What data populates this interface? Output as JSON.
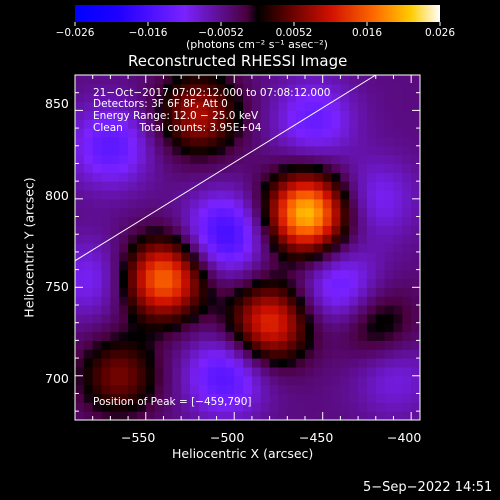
{
  "chart_data": {
    "type": "heatmap",
    "title": "Reconstructed RHESSI Image",
    "xlabel": "Heliocentric X (arcsec)",
    "ylabel": "Heliocentric Y (arcsec)",
    "xlim": [
      -590,
      -395
    ],
    "ylim": [
      675,
      870
    ],
    "xticks": [
      "−550",
      "−500",
      "−450",
      "−400"
    ],
    "yticks": [
      "850",
      "800",
      "750",
      "700"
    ],
    "colorbar": {
      "label": "(photons cm⁻² s⁻¹ asec⁻²)",
      "range": [
        -0.026,
        0.026
      ],
      "ticks": [
        "−0.026",
        "−0.016",
        "−0.0052",
        "0.0052",
        "0.016",
        "0.026"
      ]
    },
    "info_lines": [
      "21−Oct−2017 07:02:12.000 to 07:08:12.000",
      "Detectors: 3F 6F 8F, Att 0",
      "Energy Range: 12.0 − 25.0 keV",
      "Clean     Total counts: 3.95E+04"
    ],
    "peak_label": "Position of Peak = [−459,790]",
    "peak": {
      "x": -459,
      "y": 790
    },
    "blobs": [
      {
        "x": -459,
        "y": 792,
        "amp": 0.026
      },
      {
        "x": -540,
        "y": 755,
        "amp": 0.021
      },
      {
        "x": -480,
        "y": 730,
        "amp": 0.017
      },
      {
        "x": -520,
        "y": 848,
        "amp": 0.013
      },
      {
        "x": -565,
        "y": 700,
        "amp": 0.01
      },
      {
        "x": -420,
        "y": 730,
        "amp": 0.007
      },
      {
        "x": -410,
        "y": 700,
        "amp": -0.005
      },
      {
        "x": -505,
        "y": 780,
        "amp": -0.012
      },
      {
        "x": -505,
        "y": 700,
        "amp": -0.01
      },
      {
        "x": -440,
        "y": 750,
        "amp": -0.009
      },
      {
        "x": -570,
        "y": 830,
        "amp": -0.009
      },
      {
        "x": -455,
        "y": 845,
        "amp": -0.008
      },
      {
        "x": -580,
        "y": 755,
        "amp": -0.006
      },
      {
        "x": -420,
        "y": 800,
        "amp": -0.006
      }
    ],
    "limb_line": {
      "x": [
        -590,
        -420
      ],
      "y": [
        765,
        870
      ]
    }
  },
  "footer_date": "5−Sep−2022 14:51"
}
